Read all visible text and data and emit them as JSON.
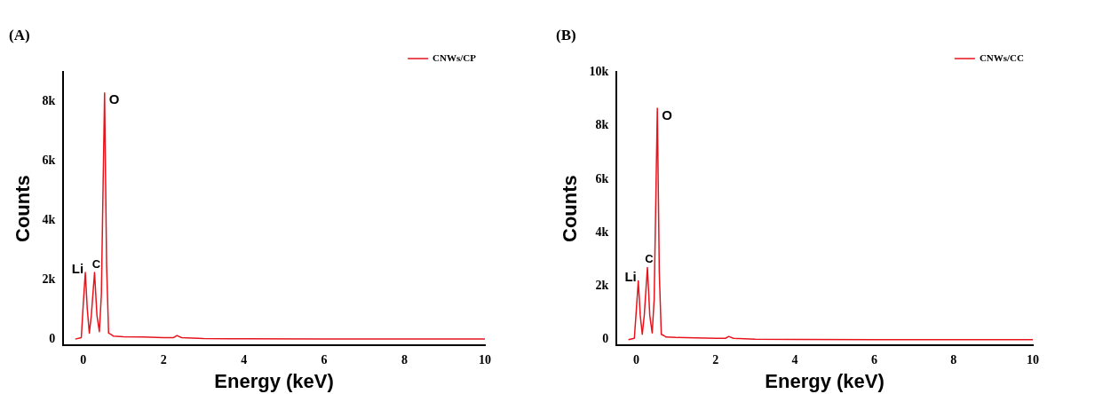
{
  "chart_data": [
    {
      "type": "line",
      "title": "(A)",
      "xlabel": "Energy (keV)",
      "ylabel": "Counts",
      "legend": "top right",
      "marker": "none",
      "grid": false,
      "series": [
        {
          "name": "CNWs/CP",
          "color": "#e8141c",
          "x": [
            -0.2,
            -0.05,
            0,
            0.05,
            0.1,
            0.15,
            0.2,
            0.28,
            0.34,
            0.4,
            0.45,
            0.53,
            0.58,
            0.63,
            0.7,
            0.75,
            1,
            1.5,
            2,
            2.25,
            2.33,
            2.45,
            3,
            4,
            6,
            8,
            10
          ],
          "values": [
            0,
            50,
            1200,
            2250,
            1000,
            200,
            800,
            2250,
            800,
            250,
            1500,
            8300,
            2500,
            200,
            150,
            100,
            80,
            70,
            50,
            50,
            120,
            50,
            20,
            10,
            0,
            0,
            0
          ]
        }
      ],
      "xlim": [
        -0.5,
        10
      ],
      "xticks": [
        0,
        2,
        4,
        6,
        8,
        10
      ],
      "ylim": [
        -200,
        9000
      ],
      "yticks": [
        0,
        {
          "value": 2000,
          "label": "2k"
        },
        {
          "value": 4000,
          "label": "4k"
        },
        {
          "value": 6000,
          "label": "6k"
        },
        {
          "value": 8000,
          "label": "8k"
        }
      ],
      "annotations": [
        {
          "text": "Li",
          "x": 0.05,
          "y": 2250
        },
        {
          "text": "C",
          "x": 0.28,
          "y": 2250
        },
        {
          "text": "O",
          "x": 0.53,
          "y": 8300
        }
      ]
    },
    {
      "type": "line",
      "title": "(B)",
      "xlabel": "Energy (keV)",
      "ylabel": "Counts",
      "legend": "top right",
      "marker": "none",
      "grid": false,
      "series": [
        {
          "name": "CNWs/CC",
          "color": "#e8141c",
          "x": [
            -0.2,
            -0.05,
            0,
            0.05,
            0.1,
            0.15,
            0.2,
            0.28,
            0.34,
            0.4,
            0.45,
            0.53,
            0.58,
            0.63,
            0.7,
            0.75,
            1,
            1.5,
            2,
            2.25,
            2.33,
            2.45,
            3,
            4,
            6,
            8,
            10
          ],
          "values": [
            0,
            50,
            1100,
            2200,
            900,
            200,
            900,
            2700,
            900,
            250,
            1500,
            8650,
            2500,
            200,
            150,
            100,
            80,
            70,
            50,
            50,
            120,
            50,
            20,
            10,
            0,
            0,
            0
          ]
        }
      ],
      "xlim": [
        -0.5,
        10
      ],
      "xticks": [
        0,
        2,
        4,
        6,
        8,
        10
      ],
      "ylim": [
        -200,
        10000
      ],
      "yticks": [
        0,
        {
          "value": 2000,
          "label": "2k"
        },
        {
          "value": 4000,
          "label": "4k"
        },
        {
          "value": 6000,
          "label": "6k"
        },
        {
          "value": 8000,
          "label": "8k"
        },
        {
          "value": 10000,
          "label": "10k"
        }
      ],
      "annotations": [
        {
          "text": "Li",
          "x": 0.05,
          "y": 2200
        },
        {
          "text": "C",
          "x": 0.28,
          "y": 2700
        },
        {
          "text": "O",
          "x": 0.53,
          "y": 8650
        }
      ]
    }
  ]
}
